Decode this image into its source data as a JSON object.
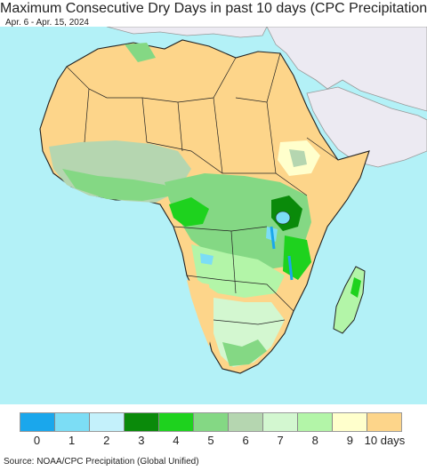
{
  "title": "Maximum Consecutive Dry Days in past 10 days (CPC Precipitation)",
  "subtitle": "Apr. 6 - Apr. 15, 2024",
  "source": "Source: NOAA/CPC Precipitation (Global Unified)",
  "legend": {
    "colors": [
      "#1aa7ec",
      "#7cddf5",
      "#c4f1fb",
      "#0a8a0a",
      "#1ed21e",
      "#84d884",
      "#b5d6b0",
      "#d3f7d0",
      "#b3f5a8",
      "#ffffcc",
      "#fdd58a"
    ],
    "labels": [
      "0",
      "1",
      "2",
      "3",
      "4",
      "5",
      "6",
      "7",
      "8",
      "9",
      "10 days"
    ]
  },
  "map": {
    "ocean_color": "#b3f1f7",
    "outside_region_color": "#eceaf2",
    "dry_color": "#fdd58a",
    "border_color": "#222222"
  }
}
